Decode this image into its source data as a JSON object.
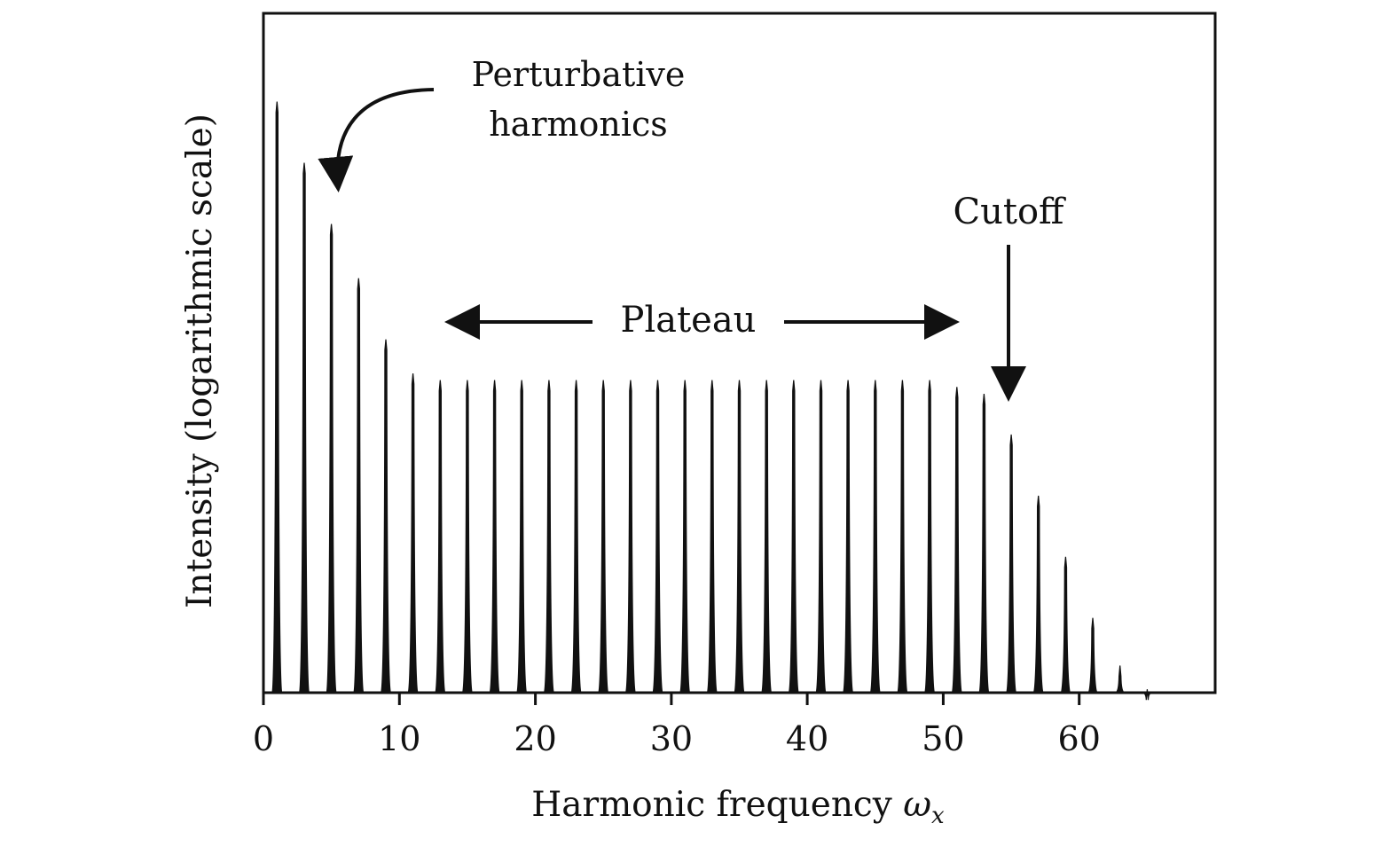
{
  "chart_data": {
    "type": "line",
    "xlabel": "Harmonic frequency ",
    "xlabel_symbol": "ω",
    "xlabel_subscript": "x",
    "ylabel": "Intensity (logarithmic scale)",
    "y_scale": "log",
    "y_ticks_shown": false,
    "xlim": [
      0,
      70
    ],
    "x_ticks": [
      0,
      10,
      20,
      30,
      40,
      50,
      60
    ],
    "x_tick_labels": [
      "0",
      "10",
      "20",
      "30",
      "40",
      "50",
      "60"
    ],
    "grid": false,
    "ylim": [
      0,
      1
    ],
    "series": [
      {
        "x": [
          1,
          3,
          5,
          7,
          9,
          11,
          13,
          15,
          17,
          19,
          21,
          23,
          25,
          27,
          29,
          31,
          33,
          35,
          37,
          39,
          41,
          43,
          45,
          47,
          49,
          51,
          53,
          55,
          57,
          59,
          61,
          63,
          65
        ],
        "values": [
          0.87,
          0.78,
          0.69,
          0.61,
          0.52,
          0.47,
          0.46,
          0.46,
          0.46,
          0.46,
          0.46,
          0.46,
          0.46,
          0.46,
          0.46,
          0.46,
          0.46,
          0.46,
          0.46,
          0.46,
          0.46,
          0.46,
          0.46,
          0.46,
          0.46,
          0.45,
          0.44,
          0.38,
          0.29,
          0.2,
          0.11,
          0.04,
          0.005
        ]
      }
    ],
    "annotations": {
      "perturbative_line1": "Perturbative",
      "perturbative_line2": "harmonics",
      "plateau": "Plateau",
      "cutoff": "Cutoff"
    }
  }
}
